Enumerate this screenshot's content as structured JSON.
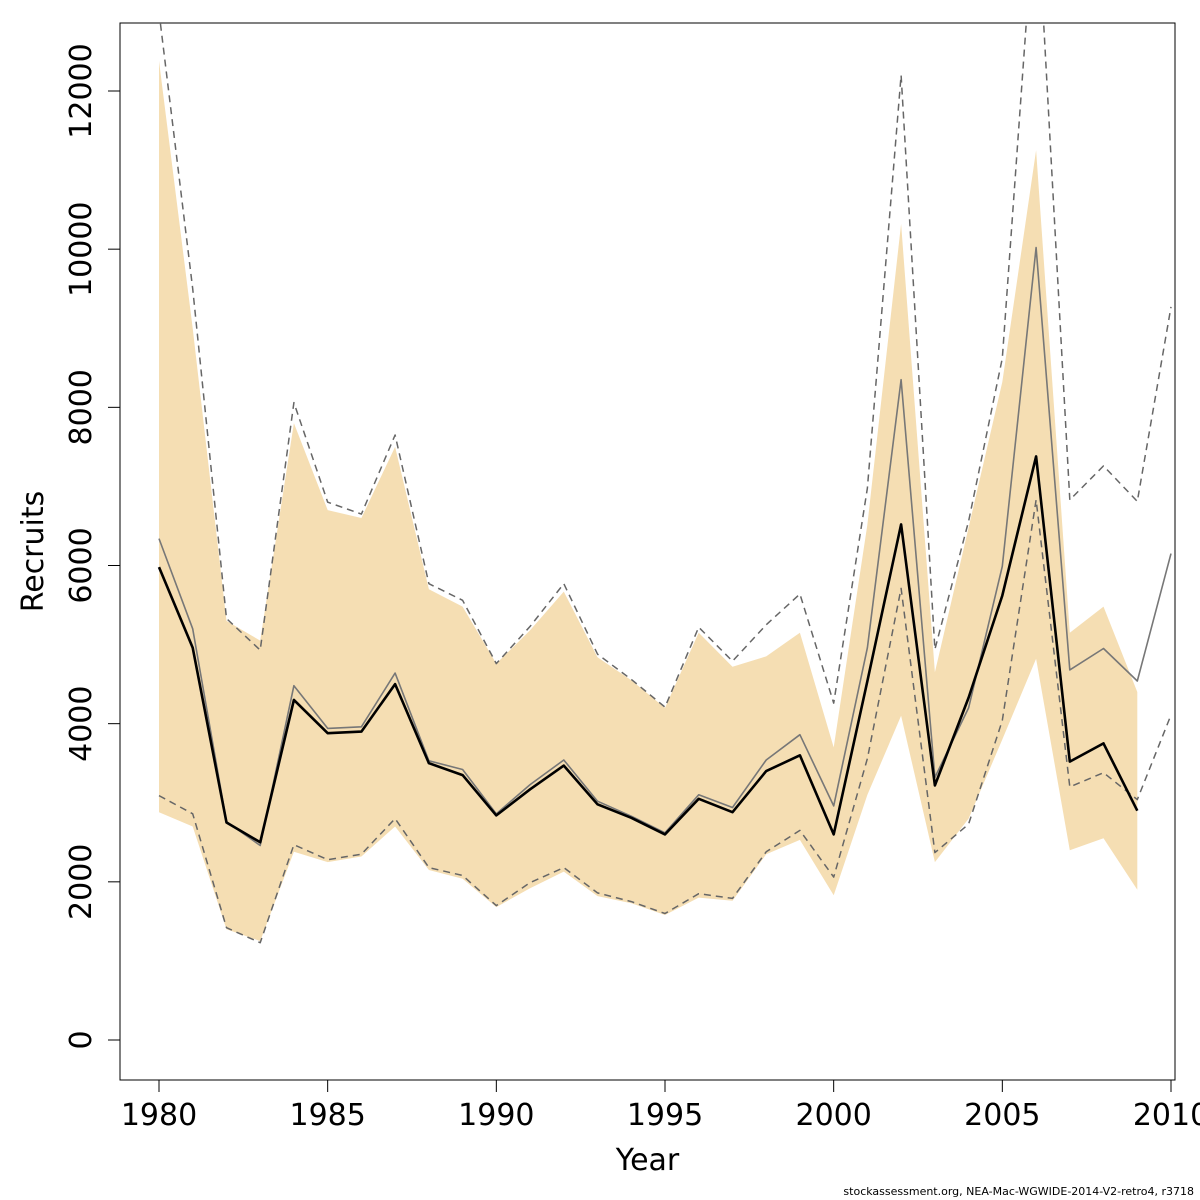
{
  "chart_data": {
    "type": "line",
    "xlabel": "Year",
    "ylabel": "Recruits",
    "xlim": [
      1979,
      2010
    ],
    "ylim": [
      -500,
      12800
    ],
    "xticks": [
      1980,
      1985,
      1990,
      1995,
      2000,
      2005,
      2010
    ],
    "yticks": [
      0,
      2000,
      4000,
      6000,
      8000,
      10000,
      12000
    ],
    "grid": false,
    "colors": {
      "band": "#f5deb3",
      "estimate": "#000000",
      "retro": "#777777",
      "retro_ci": "#666666",
      "frame": "#000000"
    },
    "confidence_band": {
      "x": [
        1980,
        1981,
        1982,
        1983,
        1984,
        1985,
        1986,
        1987,
        1988,
        1989,
        1990,
        1991,
        1992,
        1993,
        1994,
        1995,
        1996,
        1997,
        1998,
        1999,
        2000,
        2001,
        2002,
        2003,
        2004,
        2005,
        2006,
        2007,
        2008,
        2009
      ],
      "lower": [
        2880,
        2700,
        1400,
        1250,
        2380,
        2250,
        2320,
        2700,
        2150,
        2040,
        1680,
        1920,
        2130,
        1820,
        1730,
        1580,
        1800,
        1760,
        2350,
        2530,
        1830,
        3100,
        4100,
        2250,
        2800,
        3800,
        4820,
        2400,
        2550,
        1900
      ],
      "upper": [
        12380,
        9000,
        5300,
        5050,
        7800,
        6700,
        6600,
        7500,
        5700,
        5480,
        4760,
        5180,
        5670,
        4840,
        4550,
        4200,
        5150,
        4720,
        4850,
        5150,
        3700,
        6520,
        10320,
        4650,
        6480,
        8320,
        11250,
        5150,
        5480,
        4400
      ]
    },
    "series": [
      {
        "x": [
          1980,
          1981,
          1982,
          1983,
          1984,
          1985,
          1986,
          1987,
          1988,
          1989,
          1990,
          1991,
          1992,
          1993,
          1994,
          1995,
          1996,
          1997,
          1998,
          1999,
          2000,
          2001,
          2002,
          2003,
          2004,
          2005,
          2006,
          2007,
          2008,
          2009
        ],
        "values": [
          5980,
          4960,
          2750,
          2500,
          4300,
          3880,
          3900,
          4500,
          3500,
          3350,
          2840,
          3170,
          3470,
          2980,
          2810,
          2600,
          3050,
          2880,
          3400,
          3600,
          2600,
          4540,
          6520,
          3220,
          4330,
          5620,
          7380,
          3520,
          3750,
          2900
        ]
      },
      {
        "x": [
          1980,
          1981,
          1982,
          1983,
          1984,
          1985,
          1986,
          1987,
          1988,
          1989,
          1990,
          1991,
          1992,
          1993,
          1994,
          1995,
          1996,
          1997,
          1998,
          1999,
          2000,
          2001,
          2002,
          2003,
          2004,
          2005,
          2006,
          2007,
          2008,
          2009,
          2010
        ],
        "values": [
          6340,
          5200,
          2760,
          2460,
          4480,
          3940,
          3960,
          4640,
          3530,
          3420,
          2860,
          3230,
          3540,
          3020,
          2830,
          2620,
          3100,
          2940,
          3540,
          3860,
          2960,
          4960,
          8350,
          3320,
          4200,
          5990,
          10020,
          4680,
          4950,
          4540,
          6150
        ]
      },
      {
        "x": [
          1980,
          1981,
          1982,
          1983,
          1984,
          1985,
          1986,
          1987,
          1988,
          1989,
          1990,
          1991,
          1992,
          1993,
          1994,
          1995,
          1996,
          1997,
          1998,
          1999,
          2000,
          2001,
          2002,
          2003,
          2004,
          2005,
          2006,
          2007,
          2008,
          2009,
          2010
        ],
        "values": [
          13000,
          9500,
          5330,
          4930,
          8060,
          6800,
          6650,
          7650,
          5770,
          5560,
          4760,
          5230,
          5770,
          4880,
          4560,
          4210,
          5220,
          4790,
          5250,
          5640,
          4260,
          6980,
          12200,
          4940,
          6560,
          8620,
          14600,
          6830,
          7260,
          6810,
          9270
        ]
      },
      {
        "x": [
          1980,
          1981,
          1982,
          1983,
          1984,
          1985,
          1986,
          1987,
          1988,
          1989,
          1990,
          1991,
          1992,
          1993,
          1994,
          1995,
          1996,
          1997,
          1998,
          1999,
          2000,
          2001,
          2002,
          2003,
          2004,
          2005,
          2006,
          2007,
          2008,
          2009,
          2010
        ],
        "values": [
          3090,
          2860,
          1420,
          1230,
          2470,
          2280,
          2350,
          2800,
          2180,
          2080,
          1700,
          1990,
          2180,
          1860,
          1750,
          1600,
          1850,
          1790,
          2380,
          2650,
          2060,
          3560,
          5710,
          2370,
          2730,
          4040,
          6830,
          3200,
          3380,
          3040,
          4110
        ]
      }
    ]
  },
  "footer": "stockassessment.org, NEA-Mac-WGWIDE-2014-V2-retro4, r3718"
}
